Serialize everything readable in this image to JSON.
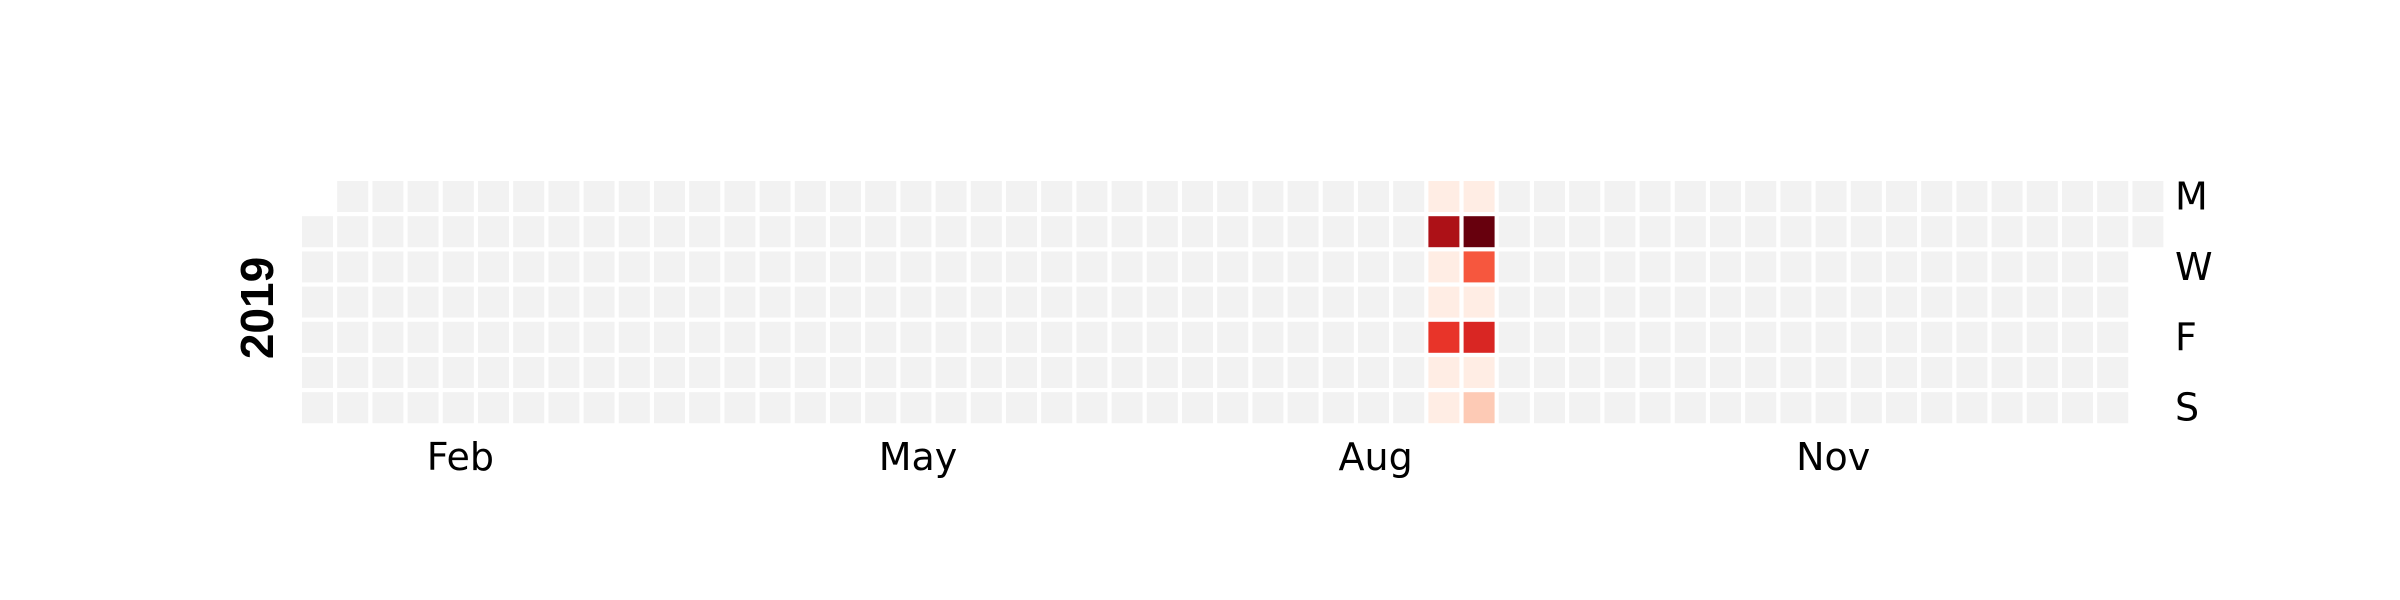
{
  "chart_data": {
    "type": "heatmap",
    "title": "",
    "year": "2019",
    "colormap": "Reds",
    "empty_color": "#f2f2f2",
    "grid_color": "#ffffff",
    "x_tick_labels": [
      "Feb",
      "May",
      "Aug",
      "Nov"
    ],
    "x_tick_dates": [
      "2019-02-01",
      "2019-05-01",
      "2019-08-01",
      "2019-11-01"
    ],
    "y_tick_labels": [
      "M",
      "W",
      "F",
      "S"
    ],
    "y_tick_days": [
      "Mon",
      "Wed",
      "Fri",
      "Sun"
    ],
    "date_range": [
      "2019-01-01",
      "2019-12-31"
    ],
    "week_start": "Monday",
    "filled_days": [
      {
        "date": "2019-08-12",
        "weekday": "Mon",
        "level": 0.05
      },
      {
        "date": "2019-08-13",
        "weekday": "Tue",
        "level": 0.85
      },
      {
        "date": "2019-08-14",
        "weekday": "Wed",
        "level": 0.05
      },
      {
        "date": "2019-08-15",
        "weekday": "Thu",
        "level": 0.05
      },
      {
        "date": "2019-08-16",
        "weekday": "Fri",
        "level": 0.65
      },
      {
        "date": "2019-08-17",
        "weekday": "Sat",
        "level": 0.05
      },
      {
        "date": "2019-08-18",
        "weekday": "Sun",
        "level": 0.05
      },
      {
        "date": "2019-08-19",
        "weekday": "Mon",
        "level": 0.05
      },
      {
        "date": "2019-08-20",
        "weekday": "Tue",
        "level": 1.0
      },
      {
        "date": "2019-08-21",
        "weekday": "Wed",
        "level": 0.55
      },
      {
        "date": "2019-08-22",
        "weekday": "Thu",
        "level": 0.05
      },
      {
        "date": "2019-08-23",
        "weekday": "Fri",
        "level": 0.7
      },
      {
        "date": "2019-08-24",
        "weekday": "Sat",
        "level": 0.05
      },
      {
        "date": "2019-08-25",
        "weekday": "Sun",
        "level": 0.2
      }
    ]
  }
}
